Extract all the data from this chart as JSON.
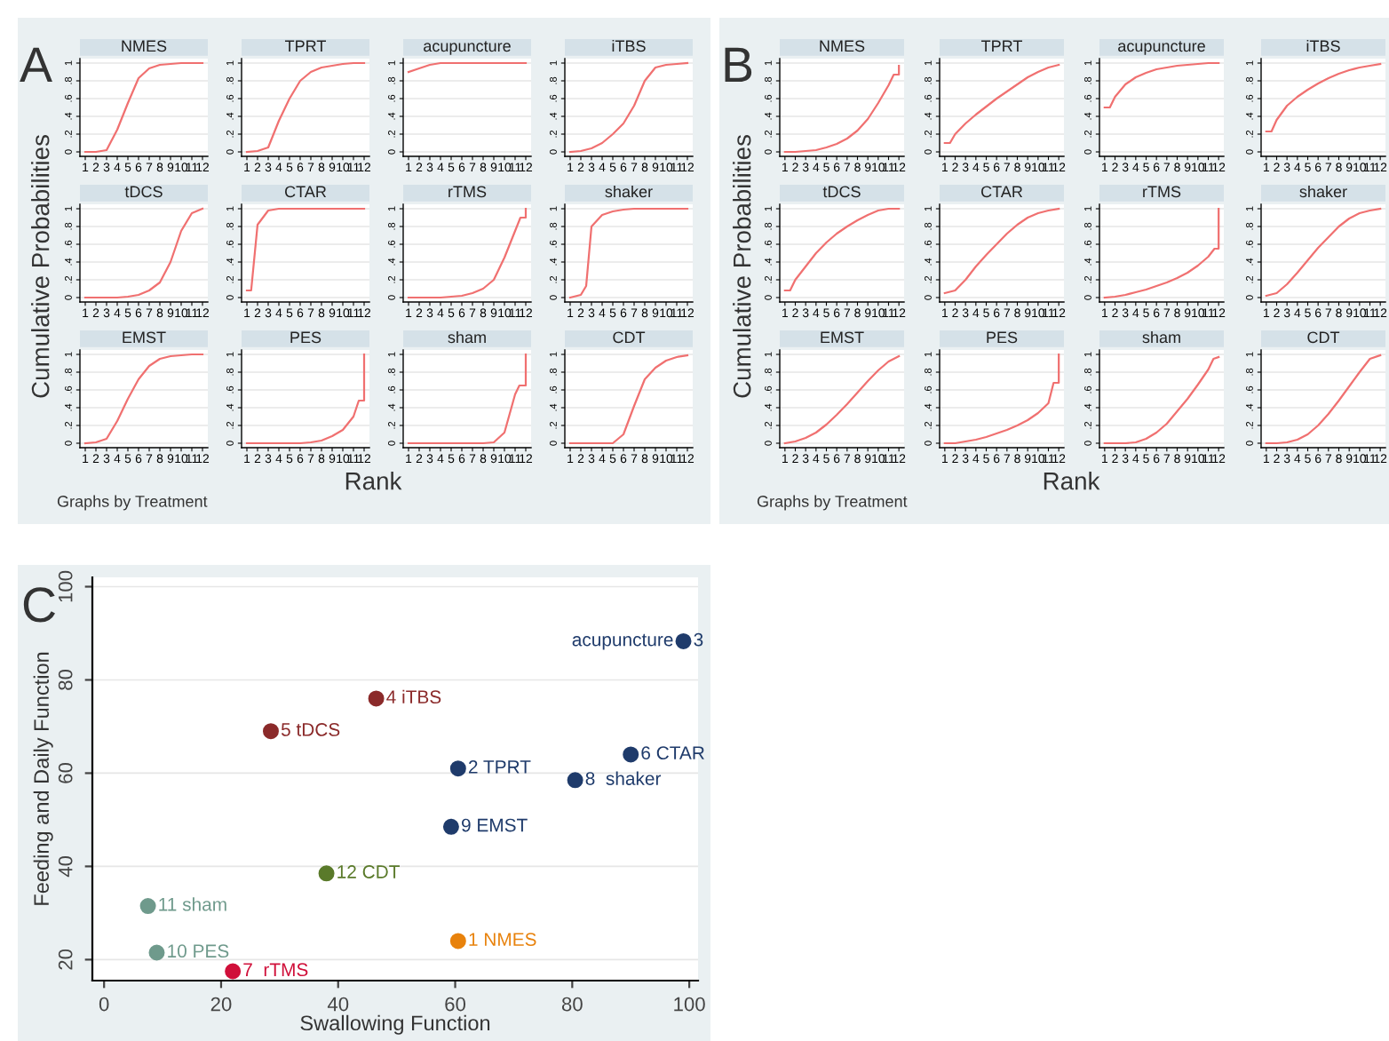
{
  "chart_data": [
    {
      "type": "line",
      "title": "NMES",
      "ylabel": "Cumulative Probabilities",
      "xlabel": "Rank",
      "annotations": [
        "A",
        "Graphs by Treatment"
      ],
      "x": [
        1,
        2,
        3,
        4,
        5,
        6,
        7,
        8,
        9,
        10,
        11,
        12
      ],
      "xlim": [
        0.5,
        12.5
      ],
      "xticks": [
        1,
        2,
        3,
        4,
        5,
        6,
        7,
        8,
        9,
        10,
        11,
        12
      ],
      "ylim": [
        -0.05,
        1.05
      ],
      "yticks": [
        {
          "value": 0,
          "label": "0"
        },
        {
          "value": 0.2,
          "label": ".2"
        },
        {
          "value": 0.4,
          "label": ".4"
        },
        {
          "value": 0.6,
          "label": ".6"
        },
        {
          "value": 0.8,
          "label": ".8"
        },
        {
          "value": 1,
          "label": "1"
        }
      ],
      "grid": "y",
      "series": [
        {
          "color": "#f07070",
          "values": [
            0,
            0,
            0.02,
            0.25,
            0.55,
            0.83,
            0.94,
            0.98,
            0.99,
            1,
            1,
            1
          ]
        }
      ]
    },
    {
      "type": "line",
      "title": "TPRT",
      "x": [
        1,
        2,
        3,
        4,
        5,
        6,
        7,
        8,
        9,
        10,
        11,
        12
      ],
      "xlim": [
        0.5,
        12.5
      ],
      "xticks": [
        1,
        2,
        3,
        4,
        5,
        6,
        7,
        8,
        9,
        10,
        11,
        12
      ],
      "ylim": [
        -0.05,
        1.05
      ],
      "yticks": [
        {
          "value": 0,
          "label": "0"
        },
        {
          "value": 0.2,
          "label": ".2"
        },
        {
          "value": 0.4,
          "label": ".4"
        },
        {
          "value": 0.6,
          "label": ".6"
        },
        {
          "value": 0.8,
          "label": ".8"
        },
        {
          "value": 1,
          "label": "1"
        }
      ],
      "grid": "y",
      "series": [
        {
          "color": "#f07070",
          "values": [
            0,
            0.01,
            0.05,
            0.35,
            0.6,
            0.8,
            0.9,
            0.95,
            0.97,
            0.99,
            1,
            1
          ]
        }
      ]
    },
    {
      "type": "line",
      "title": "acupuncture",
      "x": [
        1,
        2,
        3,
        4,
        5,
        6,
        7,
        8,
        9,
        10,
        11,
        12
      ],
      "xlim": [
        0.5,
        12.5
      ],
      "xticks": [
        1,
        2,
        3,
        4,
        5,
        6,
        7,
        8,
        9,
        10,
        11,
        12
      ],
      "ylim": [
        -0.05,
        1.05
      ],
      "yticks": [
        {
          "value": 0,
          "label": "0"
        },
        {
          "value": 0.2,
          "label": ".2"
        },
        {
          "value": 0.4,
          "label": ".4"
        },
        {
          "value": 0.6,
          "label": ".6"
        },
        {
          "value": 0.8,
          "label": ".8"
        },
        {
          "value": 1,
          "label": "1"
        }
      ],
      "grid": "y",
      "series": [
        {
          "color": "#f07070",
          "values": [
            0.9,
            0.94,
            0.98,
            1,
            1,
            1,
            1,
            1,
            1,
            1,
            1,
            1
          ]
        }
      ]
    },
    {
      "type": "line",
      "title": "iTBS",
      "x": [
        1,
        2,
        3,
        4,
        5,
        6,
        7,
        8,
        9,
        10,
        11,
        12
      ],
      "xlim": [
        0.5,
        12.5
      ],
      "xticks": [
        1,
        2,
        3,
        4,
        5,
        6,
        7,
        8,
        9,
        10,
        11,
        12
      ],
      "ylim": [
        -0.05,
        1.05
      ],
      "yticks": [
        {
          "value": 0,
          "label": "0"
        },
        {
          "value": 0.2,
          "label": ".2"
        },
        {
          "value": 0.4,
          "label": ".4"
        },
        {
          "value": 0.6,
          "label": ".6"
        },
        {
          "value": 0.8,
          "label": ".8"
        },
        {
          "value": 1,
          "label": "1"
        }
      ],
      "grid": "y",
      "series": [
        {
          "color": "#f07070",
          "values": [
            0,
            0.01,
            0.04,
            0.1,
            0.2,
            0.32,
            0.52,
            0.8,
            0.95,
            0.98,
            0.99,
            1
          ]
        }
      ]
    },
    {
      "type": "line",
      "title": "tDCS",
      "x": [
        1,
        2,
        3,
        4,
        5,
        6,
        7,
        8,
        9,
        10,
        11,
        12
      ],
      "xlim": [
        0.5,
        12.5
      ],
      "xticks": [
        1,
        2,
        3,
        4,
        5,
        6,
        7,
        8,
        9,
        10,
        11,
        12
      ],
      "ylim": [
        -0.05,
        1.05
      ],
      "yticks": [
        {
          "value": 0,
          "label": "0"
        },
        {
          "value": 0.2,
          "label": ".2"
        },
        {
          "value": 0.4,
          "label": ".4"
        },
        {
          "value": 0.6,
          "label": ".6"
        },
        {
          "value": 0.8,
          "label": ".8"
        },
        {
          "value": 1,
          "label": "1"
        }
      ],
      "grid": "y",
      "series": [
        {
          "color": "#f07070",
          "values": [
            0,
            0,
            0,
            0,
            0.01,
            0.03,
            0.08,
            0.17,
            0.4,
            0.75,
            0.95,
            1
          ]
        }
      ]
    },
    {
      "type": "line",
      "title": "CTAR",
      "x": [
        1,
        1.4,
        2,
        3,
        4,
        5,
        6,
        7,
        8,
        9,
        10,
        11,
        12
      ],
      "xlim": [
        0.5,
        12.5
      ],
      "xticks": [
        1,
        2,
        3,
        4,
        5,
        6,
        7,
        8,
        9,
        10,
        11,
        12
      ],
      "ylim": [
        -0.05,
        1.05
      ],
      "yticks": [
        {
          "value": 0,
          "label": "0"
        },
        {
          "value": 0.2,
          "label": ".2"
        },
        {
          "value": 0.4,
          "label": ".4"
        },
        {
          "value": 0.6,
          "label": ".6"
        },
        {
          "value": 0.8,
          "label": ".8"
        },
        {
          "value": 1,
          "label": "1"
        }
      ],
      "grid": "y",
      "series": [
        {
          "color": "#f07070",
          "values": [
            0.08,
            0.08,
            0.82,
            0.98,
            1,
            1,
            1,
            1,
            1,
            1,
            1,
            1,
            1
          ]
        }
      ]
    },
    {
      "type": "line",
      "title": "rTMS",
      "x": [
        1,
        2,
        3,
        4,
        5,
        6,
        7,
        8,
        9,
        10,
        11,
        11.5,
        12,
        12
      ],
      "xlim": [
        0.5,
        12.5
      ],
      "xticks": [
        1,
        2,
        3,
        4,
        5,
        6,
        7,
        8,
        9,
        10,
        11,
        12
      ],
      "ylim": [
        -0.05,
        1.05
      ],
      "yticks": [
        {
          "value": 0,
          "label": "0"
        },
        {
          "value": 0.2,
          "label": ".2"
        },
        {
          "value": 0.4,
          "label": ".4"
        },
        {
          "value": 0.6,
          "label": ".6"
        },
        {
          "value": 0.8,
          "label": ".8"
        },
        {
          "value": 1,
          "label": "1"
        }
      ],
      "grid": "y",
      "series": [
        {
          "color": "#f07070",
          "values": [
            0,
            0,
            0,
            0,
            0.01,
            0.02,
            0.05,
            0.1,
            0.2,
            0.45,
            0.75,
            0.9,
            0.9,
            1
          ]
        }
      ]
    },
    {
      "type": "line",
      "title": "shaker",
      "x": [
        1,
        2,
        2.5,
        3,
        4,
        5,
        6,
        7,
        8,
        9,
        10,
        11,
        12
      ],
      "xlim": [
        0.5,
        12.5
      ],
      "xticks": [
        1,
        2,
        3,
        4,
        5,
        6,
        7,
        8,
        9,
        10,
        11,
        12
      ],
      "ylim": [
        -0.05,
        1.05
      ],
      "yticks": [
        {
          "value": 0,
          "label": "0"
        },
        {
          "value": 0.2,
          "label": ".2"
        },
        {
          "value": 0.4,
          "label": ".4"
        },
        {
          "value": 0.6,
          "label": ".6"
        },
        {
          "value": 0.8,
          "label": ".8"
        },
        {
          "value": 1,
          "label": "1"
        }
      ],
      "grid": "y",
      "series": [
        {
          "color": "#f07070",
          "values": [
            0,
            0.03,
            0.13,
            0.8,
            0.93,
            0.97,
            0.99,
            1,
            1,
            1,
            1,
            1,
            1
          ]
        }
      ]
    },
    {
      "type": "line",
      "title": "EMST",
      "x": [
        1,
        2,
        3,
        4,
        5,
        6,
        7,
        8,
        9,
        10,
        11,
        12
      ],
      "xlim": [
        0.5,
        12.5
      ],
      "xticks": [
        1,
        2,
        3,
        4,
        5,
        6,
        7,
        8,
        9,
        10,
        11,
        12
      ],
      "ylim": [
        -0.05,
        1.05
      ],
      "yticks": [
        {
          "value": 0,
          "label": "0"
        },
        {
          "value": 0.2,
          "label": ".2"
        },
        {
          "value": 0.4,
          "label": ".4"
        },
        {
          "value": 0.6,
          "label": ".6"
        },
        {
          "value": 0.8,
          "label": ".8"
        },
        {
          "value": 1,
          "label": "1"
        }
      ],
      "grid": "y",
      "series": [
        {
          "color": "#f07070",
          "values": [
            0,
            0.01,
            0.05,
            0.25,
            0.5,
            0.72,
            0.87,
            0.95,
            0.98,
            0.99,
            1,
            1
          ]
        }
      ]
    },
    {
      "type": "line",
      "title": "PES",
      "x": [
        1,
        2,
        3,
        4,
        5,
        6,
        7,
        8,
        9,
        10,
        11,
        11.5,
        12,
        12
      ],
      "xlim": [
        0.5,
        12.5
      ],
      "xticks": [
        1,
        2,
        3,
        4,
        5,
        6,
        7,
        8,
        9,
        10,
        11,
        12
      ],
      "ylim": [
        -0.05,
        1.05
      ],
      "yticks": [
        {
          "value": 0,
          "label": "0"
        },
        {
          "value": 0.2,
          "label": ".2"
        },
        {
          "value": 0.4,
          "label": ".4"
        },
        {
          "value": 0.6,
          "label": ".6"
        },
        {
          "value": 0.8,
          "label": ".8"
        },
        {
          "value": 1,
          "label": "1"
        }
      ],
      "grid": "y",
      "series": [
        {
          "color": "#f07070",
          "values": [
            0,
            0,
            0,
            0,
            0,
            0,
            0.01,
            0.03,
            0.08,
            0.15,
            0.3,
            0.48,
            0.48,
            1
          ]
        }
      ]
    },
    {
      "type": "line",
      "title": "sham",
      "x": [
        1,
        2,
        3,
        4,
        5,
        6,
        7,
        8,
        9,
        10,
        11,
        11.4,
        12,
        12
      ],
      "xlim": [
        0.5,
        12.5
      ],
      "xticks": [
        1,
        2,
        3,
        4,
        5,
        6,
        7,
        8,
        9,
        10,
        11,
        12
      ],
      "ylim": [
        -0.05,
        1.05
      ],
      "yticks": [
        {
          "value": 0,
          "label": "0"
        },
        {
          "value": 0.2,
          "label": ".2"
        },
        {
          "value": 0.4,
          "label": ".4"
        },
        {
          "value": 0.6,
          "label": ".6"
        },
        {
          "value": 0.8,
          "label": ".8"
        },
        {
          "value": 1,
          "label": "1"
        }
      ],
      "grid": "y",
      "series": [
        {
          "color": "#f07070",
          "values": [
            0,
            0,
            0,
            0,
            0,
            0,
            0,
            0,
            0.01,
            0.12,
            0.55,
            0.65,
            0.65,
            1
          ]
        }
      ]
    },
    {
      "type": "line",
      "title": "CDT",
      "x": [
        1,
        2,
        3,
        4,
        5,
        6,
        7,
        8,
        9,
        10,
        11,
        12
      ],
      "xlim": [
        0.5,
        12.5
      ],
      "xticks": [
        1,
        2,
        3,
        4,
        5,
        6,
        7,
        8,
        9,
        10,
        11,
        12
      ],
      "ylim": [
        -0.05,
        1.05
      ],
      "yticks": [
        {
          "value": 0,
          "label": "0"
        },
        {
          "value": 0.2,
          "label": ".2"
        },
        {
          "value": 0.4,
          "label": ".4"
        },
        {
          "value": 0.6,
          "label": ".6"
        },
        {
          "value": 0.8,
          "label": ".8"
        },
        {
          "value": 1,
          "label": "1"
        }
      ],
      "grid": "y",
      "series": [
        {
          "color": "#f07070",
          "values": [
            0,
            0,
            0,
            0,
            0,
            0.1,
            0.42,
            0.72,
            0.85,
            0.93,
            0.97,
            0.99
          ]
        }
      ]
    },
    {
      "type": "line",
      "title": "NMES",
      "ylabel": "Cumulative Probabilities",
      "xlabel": "Rank",
      "annotations": [
        "B",
        "Graphs by Treatment"
      ],
      "x": [
        1,
        2,
        3,
        4,
        5,
        6,
        7,
        8,
        9,
        10,
        11,
        11.5,
        12,
        12
      ],
      "xlim": [
        0.5,
        12.5
      ],
      "xticks": [
        1,
        2,
        3,
        4,
        5,
        6,
        7,
        8,
        9,
        10,
        11,
        12
      ],
      "ylim": [
        -0.05,
        1.05
      ],
      "yticks": [
        {
          "value": 0,
          "label": "0"
        },
        {
          "value": 0.2,
          "label": ".2"
        },
        {
          "value": 0.4,
          "label": ".4"
        },
        {
          "value": 0.6,
          "label": ".6"
        },
        {
          "value": 0.8,
          "label": ".8"
        },
        {
          "value": 1,
          "label": "1"
        }
      ],
      "grid": "y",
      "series": [
        {
          "color": "#f07070",
          "values": [
            0,
            0,
            0.01,
            0.02,
            0.05,
            0.09,
            0.15,
            0.24,
            0.37,
            0.55,
            0.75,
            0.87,
            0.87,
            0.97
          ]
        }
      ]
    },
    {
      "type": "line",
      "title": "TPRT",
      "x": [
        1,
        1.5,
        2,
        3,
        4,
        5,
        6,
        7,
        8,
        9,
        10,
        11,
        12
      ],
      "xlim": [
        0.5,
        12.5
      ],
      "xticks": [
        1,
        2,
        3,
        4,
        5,
        6,
        7,
        8,
        9,
        10,
        11,
        12
      ],
      "ylim": [
        -0.05,
        1.05
      ],
      "yticks": [
        {
          "value": 0,
          "label": "0"
        },
        {
          "value": 0.2,
          "label": ".2"
        },
        {
          "value": 0.4,
          "label": ".4"
        },
        {
          "value": 0.6,
          "label": ".6"
        },
        {
          "value": 0.8,
          "label": ".8"
        },
        {
          "value": 1,
          "label": "1"
        }
      ],
      "grid": "y",
      "series": [
        {
          "color": "#f07070",
          "values": [
            0.1,
            0.1,
            0.2,
            0.32,
            0.42,
            0.51,
            0.6,
            0.68,
            0.76,
            0.84,
            0.9,
            0.95,
            0.98
          ]
        }
      ]
    },
    {
      "type": "line",
      "title": "acupuncture",
      "x": [
        1,
        1.5,
        2,
        3,
        4,
        5,
        6,
        7,
        8,
        9,
        10,
        11,
        12
      ],
      "xlim": [
        0.5,
        12.5
      ],
      "xticks": [
        1,
        2,
        3,
        4,
        5,
        6,
        7,
        8,
        9,
        10,
        11,
        12
      ],
      "ylim": [
        -0.05,
        1.05
      ],
      "yticks": [
        {
          "value": 0,
          "label": "0"
        },
        {
          "value": 0.2,
          "label": ".2"
        },
        {
          "value": 0.4,
          "label": ".4"
        },
        {
          "value": 0.6,
          "label": ".6"
        },
        {
          "value": 0.8,
          "label": ".8"
        },
        {
          "value": 1,
          "label": "1"
        }
      ],
      "grid": "y",
      "series": [
        {
          "color": "#f07070",
          "values": [
            0.5,
            0.5,
            0.62,
            0.76,
            0.84,
            0.89,
            0.93,
            0.95,
            0.97,
            0.98,
            0.99,
            1,
            1
          ]
        }
      ]
    },
    {
      "type": "line",
      "title": "iTBS",
      "x": [
        1,
        1.5,
        2,
        3,
        4,
        5,
        6,
        7,
        8,
        9,
        10,
        11,
        12
      ],
      "xlim": [
        0.5,
        12.5
      ],
      "xticks": [
        1,
        2,
        3,
        4,
        5,
        6,
        7,
        8,
        9,
        10,
        11,
        12
      ],
      "ylim": [
        -0.05,
        1.05
      ],
      "yticks": [
        {
          "value": 0,
          "label": "0"
        },
        {
          "value": 0.2,
          "label": ".2"
        },
        {
          "value": 0.4,
          "label": ".4"
        },
        {
          "value": 0.6,
          "label": ".6"
        },
        {
          "value": 0.8,
          "label": ".8"
        },
        {
          "value": 1,
          "label": "1"
        }
      ],
      "grid": "y",
      "series": [
        {
          "color": "#f07070",
          "values": [
            0.23,
            0.23,
            0.36,
            0.52,
            0.62,
            0.7,
            0.77,
            0.83,
            0.88,
            0.92,
            0.95,
            0.97,
            0.99
          ]
        }
      ]
    },
    {
      "type": "line",
      "title": "tDCS",
      "x": [
        1,
        1.5,
        2,
        3,
        4,
        5,
        6,
        7,
        8,
        9,
        10,
        11,
        12
      ],
      "xlim": [
        0.5,
        12.5
      ],
      "xticks": [
        1,
        2,
        3,
        4,
        5,
        6,
        7,
        8,
        9,
        10,
        11,
        12
      ],
      "ylim": [
        -0.05,
        1.05
      ],
      "yticks": [
        {
          "value": 0,
          "label": "0"
        },
        {
          "value": 0.2,
          "label": ".2"
        },
        {
          "value": 0.4,
          "label": ".4"
        },
        {
          "value": 0.6,
          "label": ".6"
        },
        {
          "value": 0.8,
          "label": ".8"
        },
        {
          "value": 1,
          "label": "1"
        }
      ],
      "grid": "y",
      "series": [
        {
          "color": "#f07070",
          "values": [
            0.08,
            0.08,
            0.2,
            0.35,
            0.5,
            0.62,
            0.72,
            0.8,
            0.87,
            0.93,
            0.98,
            1,
            1
          ]
        }
      ]
    },
    {
      "type": "line",
      "title": "CTAR",
      "x": [
        1,
        2,
        3,
        4,
        5,
        6,
        7,
        8,
        9,
        10,
        11,
        12
      ],
      "xlim": [
        0.5,
        12.5
      ],
      "xticks": [
        1,
        2,
        3,
        4,
        5,
        6,
        7,
        8,
        9,
        10,
        11,
        12
      ],
      "ylim": [
        -0.05,
        1.05
      ],
      "yticks": [
        {
          "value": 0,
          "label": "0"
        },
        {
          "value": 0.2,
          "label": ".2"
        },
        {
          "value": 0.4,
          "label": ".4"
        },
        {
          "value": 0.6,
          "label": ".6"
        },
        {
          "value": 0.8,
          "label": ".8"
        },
        {
          "value": 1,
          "label": "1"
        }
      ],
      "grid": "y",
      "series": [
        {
          "color": "#f07070",
          "values": [
            0.05,
            0.08,
            0.2,
            0.35,
            0.48,
            0.6,
            0.72,
            0.82,
            0.9,
            0.95,
            0.98,
            1
          ]
        }
      ]
    },
    {
      "type": "line",
      "title": "rTMS",
      "x": [
        1,
        2,
        3,
        4,
        5,
        6,
        7,
        8,
        9,
        10,
        11,
        11.6,
        12,
        12
      ],
      "xlim": [
        0.5,
        12.5
      ],
      "xticks": [
        1,
        2,
        3,
        4,
        5,
        6,
        7,
        8,
        9,
        10,
        11,
        12
      ],
      "ylim": [
        -0.05,
        1.05
      ],
      "yticks": [
        {
          "value": 0,
          "label": "0"
        },
        {
          "value": 0.2,
          "label": ".2"
        },
        {
          "value": 0.4,
          "label": ".4"
        },
        {
          "value": 0.6,
          "label": ".6"
        },
        {
          "value": 0.8,
          "label": ".8"
        },
        {
          "value": 1,
          "label": "1"
        }
      ],
      "grid": "y",
      "series": [
        {
          "color": "#f07070",
          "values": [
            0,
            0.01,
            0.03,
            0.06,
            0.09,
            0.13,
            0.17,
            0.22,
            0.28,
            0.36,
            0.46,
            0.55,
            0.55,
            1
          ]
        }
      ]
    },
    {
      "type": "line",
      "title": "shaker",
      "x": [
        1,
        2,
        3,
        4,
        5,
        6,
        7,
        8,
        9,
        10,
        11,
        12
      ],
      "xlim": [
        0.5,
        12.5
      ],
      "xticks": [
        1,
        2,
        3,
        4,
        5,
        6,
        7,
        8,
        9,
        10,
        11,
        12
      ],
      "ylim": [
        -0.05,
        1.05
      ],
      "yticks": [
        {
          "value": 0,
          "label": "0"
        },
        {
          "value": 0.2,
          "label": ".2"
        },
        {
          "value": 0.4,
          "label": ".4"
        },
        {
          "value": 0.6,
          "label": ".6"
        },
        {
          "value": 0.8,
          "label": ".8"
        },
        {
          "value": 1,
          "label": "1"
        }
      ],
      "grid": "y",
      "series": [
        {
          "color": "#f07070",
          "values": [
            0.02,
            0.05,
            0.15,
            0.28,
            0.42,
            0.56,
            0.68,
            0.8,
            0.89,
            0.95,
            0.98,
            1
          ]
        }
      ]
    },
    {
      "type": "line",
      "title": "EMST",
      "x": [
        1,
        2,
        3,
        4,
        5,
        6,
        7,
        8,
        9,
        10,
        11,
        12
      ],
      "xlim": [
        0.5,
        12.5
      ],
      "xticks": [
        1,
        2,
        3,
        4,
        5,
        6,
        7,
        8,
        9,
        10,
        11,
        12
      ],
      "ylim": [
        -0.05,
        1.05
      ],
      "yticks": [
        {
          "value": 0,
          "label": "0"
        },
        {
          "value": 0.2,
          "label": ".2"
        },
        {
          "value": 0.4,
          "label": ".4"
        },
        {
          "value": 0.6,
          "label": ".6"
        },
        {
          "value": 0.8,
          "label": ".8"
        },
        {
          "value": 1,
          "label": "1"
        }
      ],
      "grid": "y",
      "series": [
        {
          "color": "#f07070",
          "values": [
            0,
            0.02,
            0.06,
            0.12,
            0.21,
            0.32,
            0.44,
            0.57,
            0.7,
            0.82,
            0.92,
            0.98
          ]
        }
      ]
    },
    {
      "type": "line",
      "title": "PES",
      "x": [
        1,
        2,
        3,
        4,
        5,
        6,
        7,
        8,
        9,
        10,
        11,
        11.5,
        12,
        12
      ],
      "xlim": [
        0.5,
        12.5
      ],
      "xticks": [
        1,
        2,
        3,
        4,
        5,
        6,
        7,
        8,
        9,
        10,
        11,
        12
      ],
      "ylim": [
        -0.05,
        1.05
      ],
      "yticks": [
        {
          "value": 0,
          "label": "0"
        },
        {
          "value": 0.2,
          "label": ".2"
        },
        {
          "value": 0.4,
          "label": ".4"
        },
        {
          "value": 0.6,
          "label": ".6"
        },
        {
          "value": 0.8,
          "label": ".8"
        },
        {
          "value": 1,
          "label": "1"
        }
      ],
      "grid": "y",
      "series": [
        {
          "color": "#f07070",
          "values": [
            0,
            0,
            0.02,
            0.04,
            0.07,
            0.11,
            0.15,
            0.2,
            0.26,
            0.34,
            0.45,
            0.68,
            0.68,
            1
          ]
        }
      ]
    },
    {
      "type": "line",
      "title": "sham",
      "x": [
        1,
        2,
        3,
        4,
        5,
        6,
        7,
        8,
        9,
        10,
        11,
        11.5,
        12
      ],
      "xlim": [
        0.5,
        12.5
      ],
      "xticks": [
        1,
        2,
        3,
        4,
        5,
        6,
        7,
        8,
        9,
        10,
        11,
        12
      ],
      "ylim": [
        -0.05,
        1.05
      ],
      "yticks": [
        {
          "value": 0,
          "label": "0"
        },
        {
          "value": 0.2,
          "label": ".2"
        },
        {
          "value": 0.4,
          "label": ".4"
        },
        {
          "value": 0.6,
          "label": ".6"
        },
        {
          "value": 0.8,
          "label": ".8"
        },
        {
          "value": 1,
          "label": "1"
        }
      ],
      "grid": "y",
      "series": [
        {
          "color": "#f07070",
          "values": [
            0,
            0,
            0,
            0.01,
            0.05,
            0.12,
            0.22,
            0.36,
            0.5,
            0.66,
            0.83,
            0.95,
            0.97
          ]
        }
      ]
    },
    {
      "type": "line",
      "title": "CDT",
      "x": [
        1,
        2,
        3,
        4,
        5,
        6,
        7,
        8,
        9,
        10,
        11,
        12
      ],
      "xlim": [
        0.5,
        12.5
      ],
      "xticks": [
        1,
        2,
        3,
        4,
        5,
        6,
        7,
        8,
        9,
        10,
        11,
        12
      ],
      "ylim": [
        -0.05,
        1.05
      ],
      "yticks": [
        {
          "value": 0,
          "label": "0"
        },
        {
          "value": 0.2,
          "label": ".2"
        },
        {
          "value": 0.4,
          "label": ".4"
        },
        {
          "value": 0.6,
          "label": ".6"
        },
        {
          "value": 0.8,
          "label": ".8"
        },
        {
          "value": 1,
          "label": "1"
        }
      ],
      "grid": "y",
      "series": [
        {
          "color": "#f07070",
          "values": [
            0,
            0,
            0.01,
            0.04,
            0.1,
            0.2,
            0.33,
            0.48,
            0.64,
            0.8,
            0.95,
            0.99
          ]
        }
      ]
    },
    {
      "type": "scatter",
      "xlabel": "Swallowing Function",
      "ylabel": "Feeding and Daily Function",
      "annotations": [
        "C",
        {
          "text": "acupuncture",
          "x": 99,
          "y": 88.3
        },
        {
          "text": "3",
          "x": 99,
          "y": 88.3
        },
        {
          "text": "1 NMES",
          "x": 60.5,
          "y": 24
        },
        {
          "text": "2 TPRT",
          "x": 60.5,
          "y": 61
        },
        {
          "text": "4 iTBS",
          "x": 46.5,
          "y": 76
        },
        {
          "text": "5 tDCS",
          "x": 28.5,
          "y": 69
        },
        {
          "text": "6 CTAR",
          "x": 90,
          "y": 64
        },
        {
          "text": "7  rTMS",
          "x": 22,
          "y": 17.5
        },
        {
          "text": "8  shaker",
          "x": 80.5,
          "y": 58.5
        },
        {
          "text": "9 EMST",
          "x": 59.3,
          "y": 48.5
        },
        {
          "text": "10 PES",
          "x": 9,
          "y": 21.5
        },
        {
          "text": "11 sham",
          "x": 7.5,
          "y": 31.5
        },
        {
          "text": "12 CDT",
          "x": 38,
          "y": 38.5
        }
      ],
      "x": [
        60.5,
        60.5,
        99,
        46.5,
        28.5,
        90,
        22,
        80.5,
        59.3,
        9,
        7.5,
        38
      ],
      "values": [
        24,
        61,
        88.3,
        76,
        69,
        64,
        17.5,
        58.5,
        48.5,
        21.5,
        31.5,
        38.5
      ],
      "colors": [
        "#e8820c",
        "#1f3b6b",
        "#1f3b6b",
        "#8b2a2a",
        "#8b2a2a",
        "#1f3b6b",
        "#d0103a",
        "#1f3b6b",
        "#1f3b6b",
        "#6f9a8c",
        "#6f9a8c",
        "#5a7a2a"
      ],
      "xlim": [
        -2,
        101.5
      ],
      "ylim": [
        15.5,
        102
      ],
      "xticks": [
        0,
        20,
        40,
        60,
        80,
        100
      ],
      "yticks": [
        20,
        40,
        60,
        80,
        100
      ],
      "grid": "y",
      "marker": "circle"
    }
  ]
}
